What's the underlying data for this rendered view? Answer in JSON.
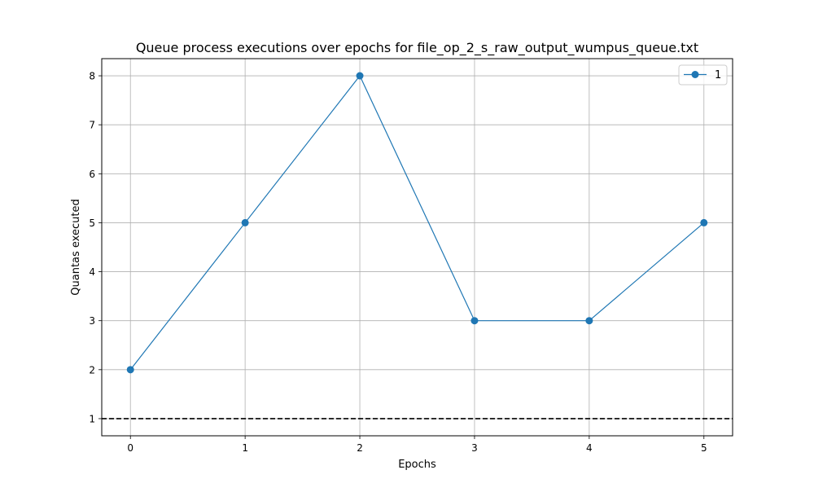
{
  "chart_data": {
    "type": "line",
    "title": "Queue process executions over epochs for file_op_2_s_raw_output_wumpus_queue.txt",
    "xlabel": "Epochs",
    "ylabel": "Quantas executed",
    "x": [
      0,
      1,
      2,
      3,
      4,
      5
    ],
    "xlim": [
      -0.25,
      5.25
    ],
    "ylim": [
      0.65,
      8.35
    ],
    "xticks": [
      0,
      1,
      2,
      3,
      4,
      5
    ],
    "yticks": [
      1,
      2,
      3,
      4,
      5,
      6,
      7,
      8
    ],
    "grid": true,
    "legend_position": "top-right",
    "series": [
      {
        "name": "1",
        "values": [
          2,
          5,
          8,
          3,
          3,
          5
        ],
        "color": "#1f77b4",
        "marker": "circle"
      }
    ],
    "reference_lines": [
      {
        "y": 1,
        "color": "#000000",
        "style": "dashed"
      }
    ]
  }
}
